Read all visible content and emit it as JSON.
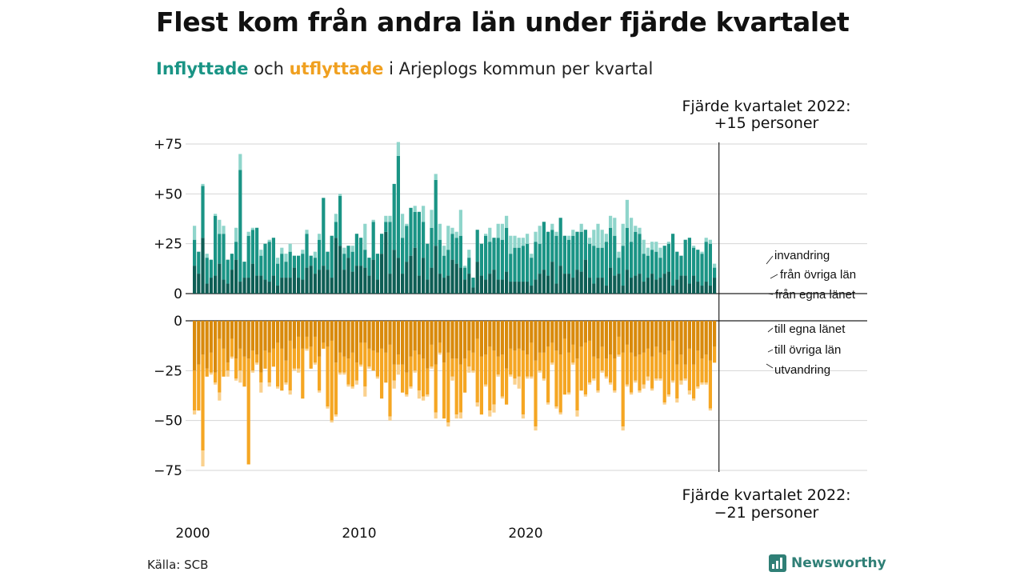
{
  "title": "Flest kom från andra län under fjärde kvartalet",
  "subtitle": {
    "part1": "Inflyttade",
    "part2": " och ",
    "part3": "utflyttade",
    "part4": " i Arjeplogs kommun per kvartal"
  },
  "source": "Källa: SCB",
  "brand": "Newsworthy",
  "colors": {
    "in_own": "#0e5e55",
    "in_other": "#1a9485",
    "in_immig": "#8fd5cb",
    "out_own": "#d98a0c",
    "out_other": "#f5a623",
    "out_emig": "#fad18e",
    "grid": "#d6d6d6"
  },
  "chart_data": {
    "type": "bar",
    "stacked": true,
    "x_start_year": 2000,
    "x_ticks": [
      "2000",
      "2010",
      "2020"
    ],
    "annotation_top": {
      "line1": "Fjärde kvartalet 2022:",
      "line2": "+15 personer"
    },
    "annotation_bottom": {
      "line1": "Fjärde kvartalet 2022:",
      "line2": "−21 personer"
    },
    "upper": {
      "ylim": [
        0,
        75
      ],
      "yticks": [
        "0",
        "+25",
        "+50",
        "+75"
      ],
      "labels": [
        "invandring",
        "från övriga län",
        "från egna länet"
      ],
      "series": [
        {
          "name": "från egna länet",
          "values": [
            14,
            10,
            28,
            5,
            8,
            9,
            15,
            7,
            5,
            12,
            17,
            6,
            8,
            8,
            15,
            9,
            9,
            7,
            6,
            9,
            4,
            8,
            8,
            8,
            13,
            8,
            7,
            13,
            14,
            10,
            12,
            14,
            12,
            8,
            28,
            24,
            12,
            18,
            11,
            14,
            14,
            13,
            9,
            17,
            7,
            20,
            31,
            10,
            22,
            18,
            10,
            16,
            19,
            23,
            9,
            18,
            7,
            13,
            24,
            10,
            8,
            9,
            17,
            15,
            13,
            7,
            10,
            3,
            16,
            9,
            7,
            10,
            12,
            7,
            7,
            11,
            6,
            6,
            6,
            6,
            6,
            4,
            7,
            10,
            12,
            9,
            16,
            5,
            14,
            10,
            10,
            8,
            12,
            11,
            17,
            8,
            5,
            8,
            8,
            4,
            13,
            9,
            10,
            4,
            12,
            8,
            9,
            10,
            6,
            8,
            10,
            7,
            8,
            10,
            11,
            4,
            7,
            9,
            9,
            5,
            9,
            6,
            4,
            6,
            4,
            8
          ]
        },
        {
          "name": "från övriga län",
          "values": [
            13,
            11,
            26,
            13,
            9,
            30,
            15,
            23,
            12,
            8,
            9,
            56,
            8,
            21,
            17,
            24,
            10,
            18,
            20,
            19,
            11,
            12,
            8,
            13,
            6,
            11,
            13,
            17,
            5,
            8,
            15,
            34,
            9,
            21,
            8,
            25,
            8,
            6,
            10,
            16,
            14,
            9,
            9,
            19,
            13,
            10,
            5,
            26,
            33,
            51,
            18,
            18,
            24,
            18,
            32,
            18,
            18,
            20,
            33,
            17,
            11,
            13,
            13,
            13,
            16,
            6,
            8,
            5,
            16,
            16,
            22,
            16,
            16,
            21,
            20,
            22,
            14,
            17,
            17,
            18,
            19,
            14,
            19,
            15,
            24,
            22,
            16,
            24,
            24,
            19,
            17,
            21,
            19,
            20,
            15,
            17,
            19,
            15,
            15,
            22,
            20,
            20,
            8,
            20,
            21,
            18,
            22,
            20,
            14,
            11,
            12,
            14,
            10,
            14,
            14,
            26,
            14,
            10,
            18,
            23,
            14,
            16,
            16,
            20,
            21,
            5
          ]
        },
        {
          "name": "invandring",
          "values": [
            7,
            0,
            1,
            2,
            0,
            1,
            7,
            4,
            0,
            0,
            7,
            8,
            0,
            2,
            1,
            0,
            3,
            0,
            1,
            0,
            3,
            3,
            4,
            4,
            0,
            0,
            2,
            2,
            0,
            3,
            3,
            0,
            0,
            0,
            4,
            1,
            3,
            0,
            3,
            0,
            0,
            13,
            0,
            1,
            0,
            0,
            3,
            3,
            0,
            7,
            12,
            1,
            0,
            3,
            0,
            8,
            0,
            9,
            3,
            8,
            5,
            12,
            3,
            3,
            13,
            1,
            4,
            0,
            0,
            0,
            1,
            7,
            0,
            7,
            8,
            6,
            9,
            6,
            5,
            4,
            5,
            2,
            5,
            9,
            0,
            0,
            3,
            2,
            0,
            0,
            2,
            3,
            0,
            4,
            0,
            3,
            8,
            12,
            9,
            4,
            6,
            9,
            3,
            11,
            14,
            12,
            3,
            3,
            7,
            4,
            4,
            5,
            5,
            0,
            1,
            0,
            0,
            0,
            0,
            0,
            1,
            0,
            1,
            2,
            2,
            2
          ]
        }
      ]
    },
    "lower": {
      "ylim": [
        -75,
        0
      ],
      "yticks": [
        "0",
        "−25",
        "−50",
        "−75"
      ],
      "labels": [
        "till egna länet",
        "till övriga län",
        "utvandring"
      ],
      "series": [
        {
          "name": "till egna länet",
          "values": [
            -25,
            -22,
            -17,
            -24,
            -16,
            -26,
            -9,
            -14,
            -21,
            -9,
            -19,
            -14,
            -18,
            -19,
            -15,
            -17,
            -26,
            -15,
            -16,
            -14,
            -11,
            -14,
            -20,
            -10,
            -14,
            -8,
            -14,
            -8,
            -13,
            -8,
            -18,
            -11,
            -13,
            -10,
            -21,
            -16,
            -18,
            -19,
            -16,
            -21,
            -11,
            -11,
            -14,
            -15,
            -16,
            -14,
            -16,
            -12,
            -22,
            -17,
            -22,
            -26,
            -18,
            -15,
            -17,
            -19,
            -24,
            -12,
            -22,
            -11,
            -21,
            -16,
            -19,
            -19,
            -22,
            -19,
            -15,
            -16,
            -9,
            -18,
            -17,
            -13,
            -15,
            -18,
            -17,
            -24,
            -14,
            -15,
            -14,
            -15,
            -17,
            -11,
            -20,
            -16,
            -16,
            -13,
            -11,
            -15,
            -17,
            -9,
            -16,
            -12,
            -19,
            -13,
            -11,
            -10,
            -18,
            -19,
            -13,
            -19,
            -17,
            -19,
            -8,
            -16,
            -12,
            -16,
            -18,
            -17,
            -16,
            -14,
            -18,
            -13,
            -16,
            -17,
            -15,
            -10,
            -22,
            -17,
            -22,
            -14,
            -22,
            -15,
            -19,
            -17,
            -20,
            -13
          ]
        },
        {
          "name": "till övriga län",
          "values": [
            -20,
            -23,
            -48,
            -4,
            -10,
            -5,
            -27,
            -14,
            -4,
            -9,
            -10,
            -11,
            -15,
            -53,
            -10,
            -4,
            -5,
            -9,
            -15,
            -9,
            -22,
            -21,
            -11,
            -25,
            -10,
            -16,
            -25,
            -6,
            -11,
            -13,
            -17,
            -3,
            -30,
            -40,
            -26,
            -10,
            -8,
            -13,
            -17,
            -9,
            -11,
            -22,
            -9,
            -10,
            -12,
            -25,
            -15,
            -36,
            -8,
            -5,
            -14,
            -11,
            -15,
            -10,
            -18,
            -19,
            -13,
            -11,
            -24,
            -5,
            -28,
            -35,
            -9,
            -28,
            -24,
            -17,
            -8,
            -9,
            -32,
            -29,
            -15,
            -32,
            -27,
            -9,
            -21,
            -18,
            -13,
            -14,
            -14,
            -32,
            -11,
            -17,
            -33,
            -9,
            -13,
            -28,
            -10,
            -28,
            -29,
            -28,
            -20,
            -9,
            -26,
            -22,
            -26,
            -21,
            -11,
            -16,
            -12,
            -9,
            -14,
            -16,
            -9,
            -37,
            -20,
            -20,
            -12,
            -18,
            -16,
            -14,
            -16,
            -16,
            -13,
            -24,
            -22,
            -20,
            -17,
            -13,
            -7,
            -21,
            -17,
            -18,
            -12,
            -14,
            -24,
            -8
          ]
        },
        {
          "name": "utvandring",
          "values": [
            -2,
            0,
            -8,
            0,
            -1,
            -1,
            -4,
            0,
            -3,
            -1,
            -1,
            -6,
            0,
            0,
            -1,
            -1,
            -5,
            0,
            -2,
            0,
            -1,
            0,
            -1,
            -2,
            -1,
            -2,
            0,
            -1,
            0,
            -1,
            -1,
            0,
            -1,
            -1,
            -1,
            -1,
            -1,
            -1,
            -1,
            -2,
            -1,
            -5,
            -1,
            0,
            -1,
            0,
            0,
            -2,
            -4,
            -5,
            0,
            -1,
            -1,
            -1,
            -4,
            -2,
            -1,
            -1,
            -3,
            -1,
            0,
            -2,
            -2,
            -2,
            -3,
            0,
            -3,
            -1,
            -2,
            0,
            -1,
            -3,
            -4,
            -1,
            -1,
            0,
            -1,
            -3,
            -6,
            -2,
            -1,
            -1,
            -2,
            -1,
            -1,
            -1,
            -1,
            -1,
            -1,
            0,
            -1,
            -1,
            -3,
            0,
            -1,
            -1,
            -1,
            -1,
            -1,
            -1,
            -1,
            -1,
            -1,
            -2,
            -1,
            -1,
            -1,
            -1,
            -2,
            -2,
            -1,
            -1,
            -1,
            -1,
            -1,
            -1,
            -2,
            -2,
            -1,
            -2,
            -1,
            -1,
            -1,
            -1,
            -1,
            0
          ]
        }
      ]
    }
  }
}
